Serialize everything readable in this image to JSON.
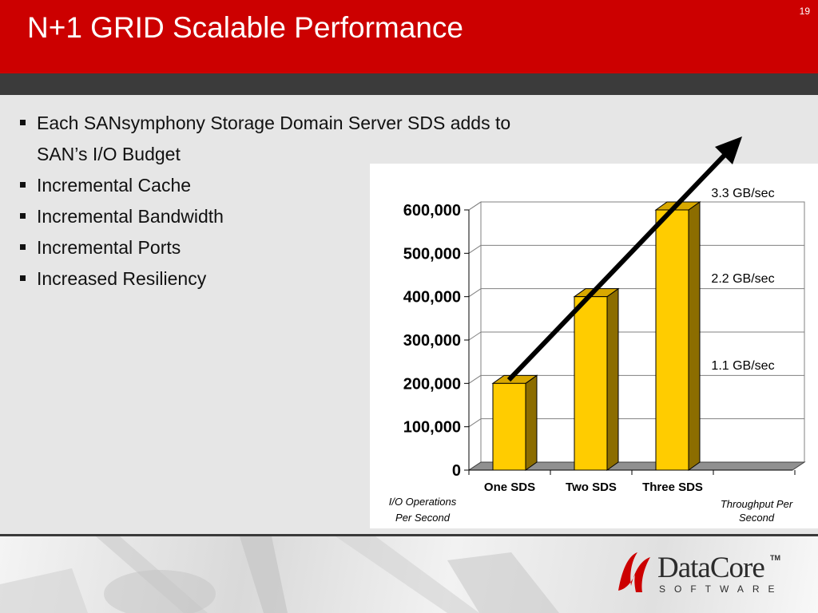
{
  "slide": {
    "title": "N+1 GRID Scalable Performance",
    "number": "19"
  },
  "bullets": [
    "Each SANsymphony Storage Domain Server SDS adds to SAN’s I/O Budget",
    "Incremental Cache",
    "Incremental Bandwidth",
    "Incremental Ports",
    "Increased Resiliency"
  ],
  "chart_data": {
    "type": "bar",
    "categories": [
      "One SDS",
      "Two SDS",
      "Three SDS"
    ],
    "values": [
      200000,
      400000,
      600000
    ],
    "ylim": [
      0,
      600000
    ],
    "yticks": [
      "0",
      "100,000",
      "200,000",
      "300,000",
      "400,000",
      "500,000",
      "600,000"
    ],
    "ylabel": "I/O Operations Per Second",
    "y2label": "Throughput Per Second",
    "throughput_labels": [
      "1.1 GB/sec",
      "2.2 GB/sec",
      "3.3 GB/sec"
    ],
    "bar_color": "#ffcc00",
    "bar_side_color": "#8c6d00",
    "grid": true,
    "trend_arrow": true
  },
  "logo": {
    "name": "DataCore",
    "tm": "TM",
    "sub": "SOFTWARE",
    "color": "#cc0000"
  }
}
